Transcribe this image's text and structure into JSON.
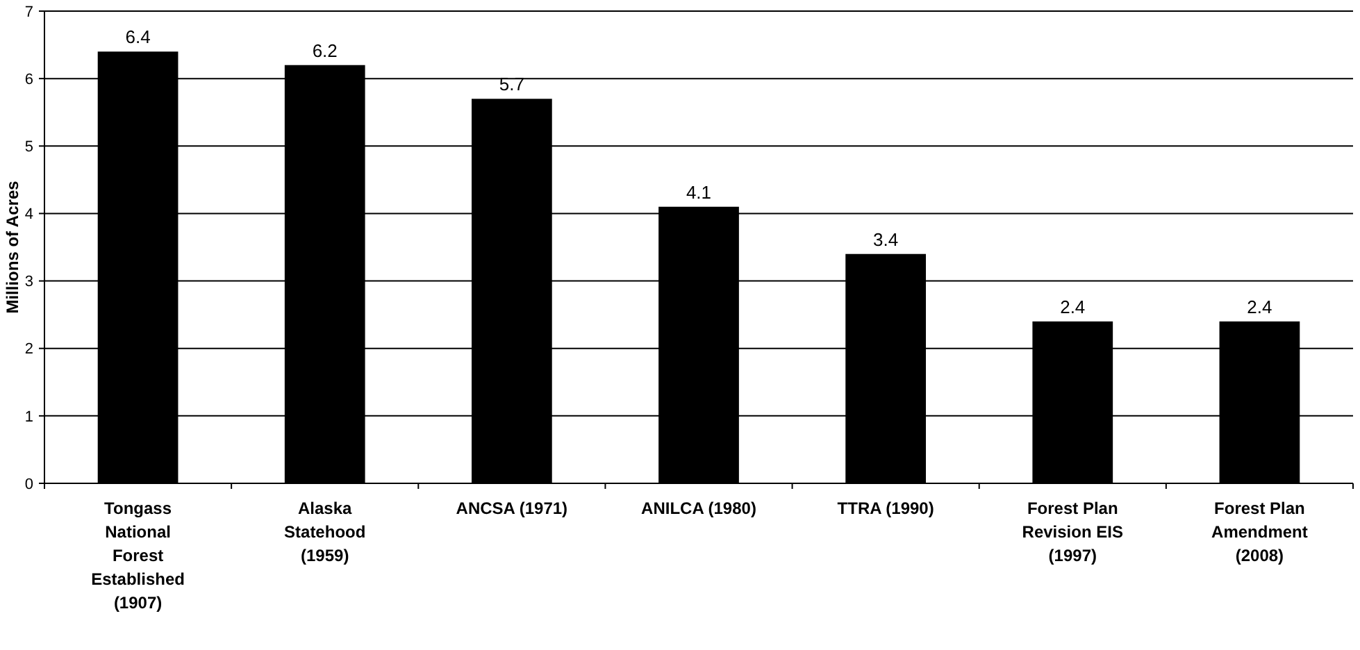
{
  "chart_data": {
    "type": "bar",
    "ylabel": "Millions of Acres",
    "categories": [
      "Tongass National Forest Established (1907)",
      "Alaska Statehood (1959)",
      "ANCSA (1971)",
      "ANILCA (1980)",
      "TTRA (1990)",
      "Forest Plan Revision EIS (1997)",
      "Forest Plan Amendment (2008)"
    ],
    "values": [
      6.4,
      6.2,
      5.7,
      4.1,
      3.4,
      2.4,
      2.4
    ],
    "color": "#000000",
    "ylim": [
      0,
      7
    ],
    "yticks": [
      0,
      1,
      2,
      3,
      4,
      5,
      6,
      7
    ],
    "grid": "y",
    "data_labels": true
  }
}
